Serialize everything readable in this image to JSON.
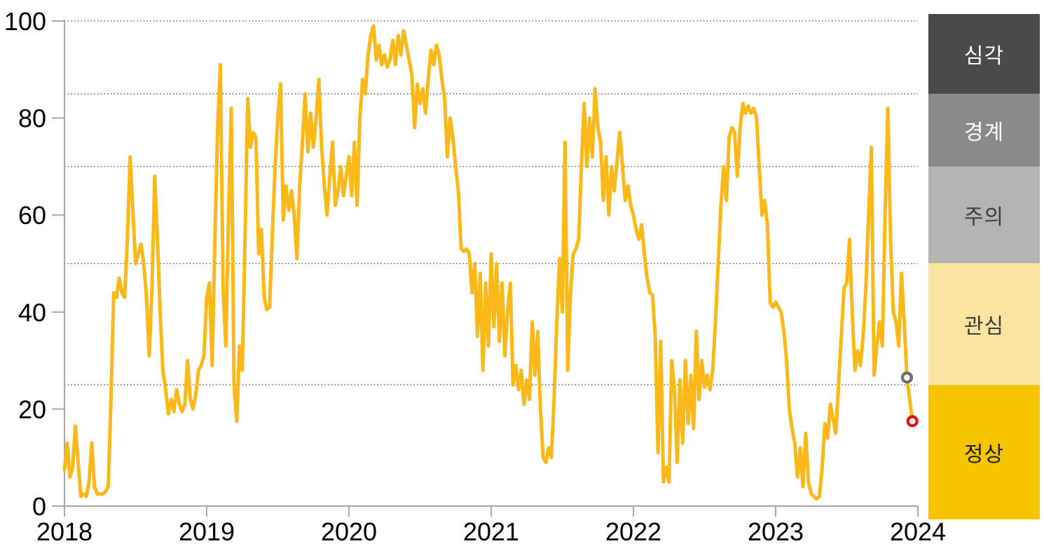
{
  "chart_data": {
    "type": "line",
    "title": "",
    "legend_position": "right",
    "grid": "dotted-horizontal",
    "x_axis": {
      "labels": [
        "2018",
        "2019",
        "2020",
        "2021",
        "2022",
        "2023",
        "2024"
      ]
    },
    "y_axis": {
      "ticks": [
        "0",
        "20",
        "40",
        "60",
        "80",
        "100"
      ],
      "min": 0,
      "max": 100
    },
    "gridline_values": [
      100,
      85,
      70,
      50,
      25
    ],
    "series": [
      {
        "name": "risk-index",
        "color": "#FAB919",
        "frequency": "weekly",
        "start_label": "2018",
        "values": [
          7.5,
          13,
          6,
          8,
          16.5,
          9,
          2,
          2.5,
          2,
          5,
          13,
          4,
          2.5,
          2.5,
          2.5,
          3,
          4,
          22,
          44,
          43,
          47,
          44,
          43,
          55,
          72,
          61,
          50,
          52,
          54,
          50,
          43,
          31,
          45,
          68,
          55,
          40,
          28,
          24,
          19,
          22,
          19.5,
          24,
          21,
          19.5,
          21,
          30,
          22,
          20,
          23,
          28,
          29,
          31,
          43,
          46,
          29,
          55,
          78,
          91,
          45,
          33,
          60,
          82,
          25,
          17.5,
          33,
          28,
          55,
          84,
          74,
          77,
          76,
          52,
          57,
          43,
          40.5,
          41,
          56,
          70,
          80,
          87,
          59,
          66,
          61,
          65,
          60,
          51,
          66,
          75,
          85,
          73,
          81,
          74,
          80,
          88,
          74,
          66,
          60,
          68,
          75,
          62,
          65,
          70,
          64,
          68,
          72,
          64,
          75,
          62,
          80,
          88,
          85,
          93,
          97,
          99,
          92,
          95,
          91,
          93,
          90.5,
          92,
          96,
          91,
          97,
          93,
          98,
          95,
          92,
          89,
          78,
          87,
          83,
          86,
          81,
          88,
          94,
          91,
          95,
          93,
          88,
          84,
          72,
          80,
          76,
          70,
          65,
          53,
          52.5,
          53,
          52,
          44,
          50,
          35,
          48,
          28,
          46,
          33,
          52,
          37,
          50,
          34,
          46,
          31,
          40,
          46,
          25,
          29,
          24,
          28,
          21,
          26,
          22,
          38,
          27,
          36,
          20,
          10,
          9,
          12,
          10,
          22,
          38,
          51,
          40,
          75,
          28,
          44,
          52,
          53,
          55,
          70,
          83,
          70,
          80,
          72,
          86,
          78,
          75,
          63,
          72,
          60,
          70,
          65,
          71,
          77,
          70,
          63,
          66,
          62,
          60,
          57,
          55,
          58,
          52,
          47,
          44,
          43.5,
          35,
          11,
          34,
          5,
          8,
          5,
          30,
          24,
          9,
          26,
          13,
          30,
          17,
          27,
          16,
          36,
          22,
          30,
          24.5,
          27,
          24,
          28,
          38,
          50,
          62,
          70,
          63,
          76,
          78,
          77,
          68,
          78,
          83,
          81,
          82.5,
          81,
          82,
          80,
          70,
          60,
          63,
          58,
          42,
          41,
          42,
          41,
          40,
          36,
          30,
          20,
          16,
          13,
          6,
          12,
          4,
          15,
          5,
          2.5,
          2,
          1.5,
          2,
          8,
          17,
          14,
          21,
          18,
          15,
          25,
          35,
          45,
          46,
          55,
          40,
          28,
          32,
          29,
          35,
          45,
          60,
          74,
          27,
          33,
          38,
          33,
          60,
          82,
          55,
          40,
          38,
          33,
          48,
          38,
          26.5,
          22,
          17.5
        ]
      }
    ],
    "markers": [
      {
        "name": "previous-point-marker",
        "index": 308,
        "value": 26.5,
        "color": "#6F6F6F"
      },
      {
        "name": "latest-point-marker",
        "index": 310,
        "value": 17.5,
        "color": "#E01212"
      }
    ],
    "risk_bands": [
      {
        "label": "심각",
        "from": 85,
        "to": 101.5,
        "color": "#4A4A4A",
        "text_color": "#FFFFFF"
      },
      {
        "label": "경계",
        "from": 70,
        "to": 85,
        "color": "#8A8A8A",
        "text_color": "#FFFFFF"
      },
      {
        "label": "주의",
        "from": 50,
        "to": 70,
        "color": "#B4B4B3",
        "text_color": "#3D3D3D"
      },
      {
        "label": "관심",
        "from": 25,
        "to": 50,
        "color": "#FBE4A0",
        "text_color": "#3D3D3D"
      },
      {
        "label": "정상",
        "from": -2.7,
        "to": 25,
        "color": "#F7C400",
        "text_color": "#1F1F1F"
      }
    ],
    "style": {
      "axis_color": "#A8A8A8",
      "gridline_color": "#404040",
      "tick_label_color": "#000000",
      "line_width": 5
    }
  }
}
